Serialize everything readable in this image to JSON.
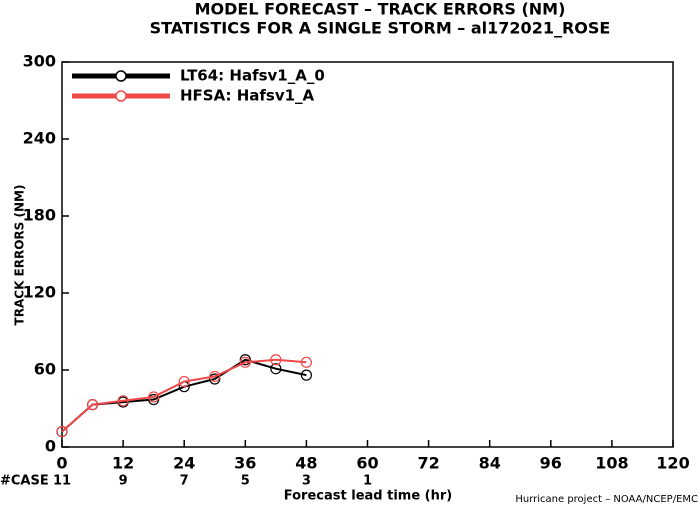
{
  "chart_data": {
    "type": "line",
    "title": "MODEL FORECAST – TRACK ERRORS (NM)",
    "subtitle": "STATISTICS FOR A SINGLE STORM – al172021_ROSE",
    "ylabel": "TRACK ERRORS (NM)",
    "xlabel": "Forecast lead time (hr)",
    "footer": "Hurricane project – NOAA/NCEP/EMC",
    "x": [
      0,
      6,
      12,
      18,
      24,
      30,
      36,
      42,
      48
    ],
    "series": [
      {
        "name": "LT64: Hafsv1_A_0",
        "color": "#000000",
        "values": [
          12,
          33,
          35,
          37,
          47,
          53,
          68,
          61,
          56
        ]
      },
      {
        "name": "HFSA: Hafsv1_A",
        "color": "#f04848",
        "values": [
          12,
          33,
          36,
          39,
          51,
          55,
          66,
          68,
          66
        ]
      }
    ],
    "xlim": [
      0,
      120
    ],
    "xticks": [
      0,
      12,
      24,
      36,
      48,
      60,
      72,
      84,
      96,
      108,
      120
    ],
    "ylim": [
      0,
      300
    ],
    "yticks": [
      0,
      60,
      120,
      180,
      240,
      300
    ],
    "case_label": "#CASE",
    "case_x": [
      0,
      12,
      24,
      36,
      48,
      60
    ],
    "case_counts": [
      11,
      9,
      7,
      5,
      3,
      1
    ],
    "case_color": "#20c0c0",
    "legend": "upper-left"
  }
}
